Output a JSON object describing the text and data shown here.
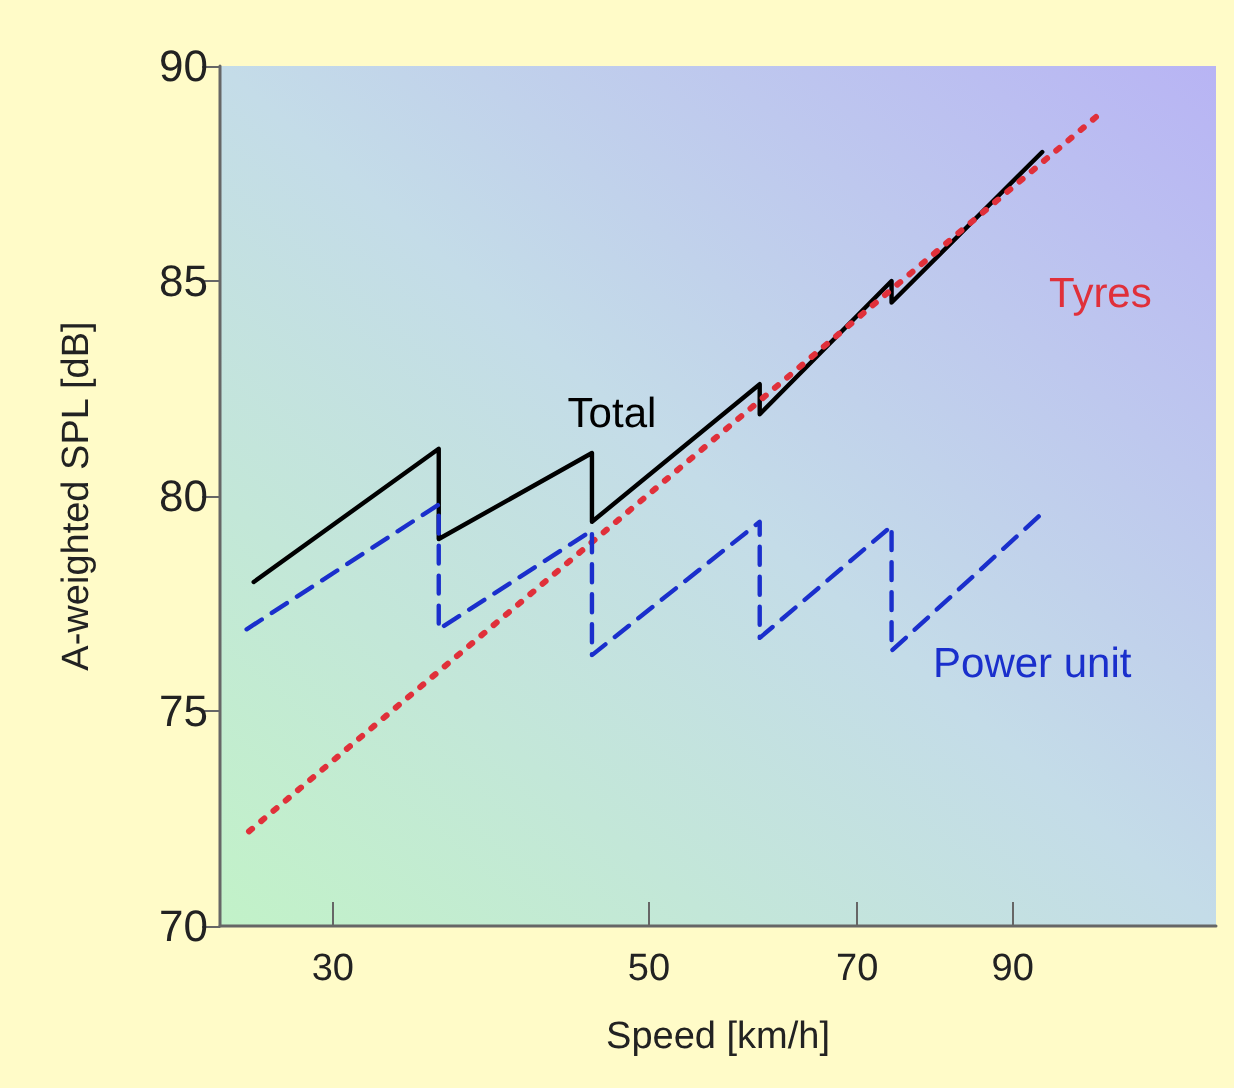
{
  "chart_data": {
    "type": "line",
    "xlabel": "Speed [km/h]",
    "ylabel": "A-weighted SPL [dB]",
    "log": "x",
    "xlim": [
      25,
      125
    ],
    "xticks": [
      30,
      50,
      70,
      90
    ],
    "ylim": [
      70,
      90
    ],
    "yticks": [
      70,
      75,
      80,
      85,
      90
    ],
    "grid": false,
    "legend": false,
    "marker": "none",
    "series": [
      {
        "name": "Total",
        "color": "#000000",
        "line_style": "solid",
        "x": [
          26.4,
          35.6,
          35.6,
          45.6,
          45.6,
          59.8,
          59.8,
          74,
          74,
          94.4
        ],
        "values": [
          78,
          81.1,
          79,
          81,
          79.4,
          82.6,
          81.9,
          85,
          84.5,
          88
        ]
      },
      {
        "name": "Tyres",
        "color": "#e0303a",
        "line_style": "dotted",
        "x": [
          26.2,
          103.7
        ],
        "values": [
          72.2,
          88.9
        ]
      },
      {
        "name": "Power unit",
        "color": "#1a2fcc",
        "line_style": "dashed",
        "x": [
          26.1,
          35.6,
          35.6,
          45.6,
          45.6,
          59.8,
          59.8,
          74,
          74,
          94.4
        ],
        "values": [
          76.9,
          79.8,
          76.9,
          79.2,
          76.3,
          79.4,
          76.7,
          79.3,
          76.4,
          79.6
        ]
      }
    ]
  }
}
